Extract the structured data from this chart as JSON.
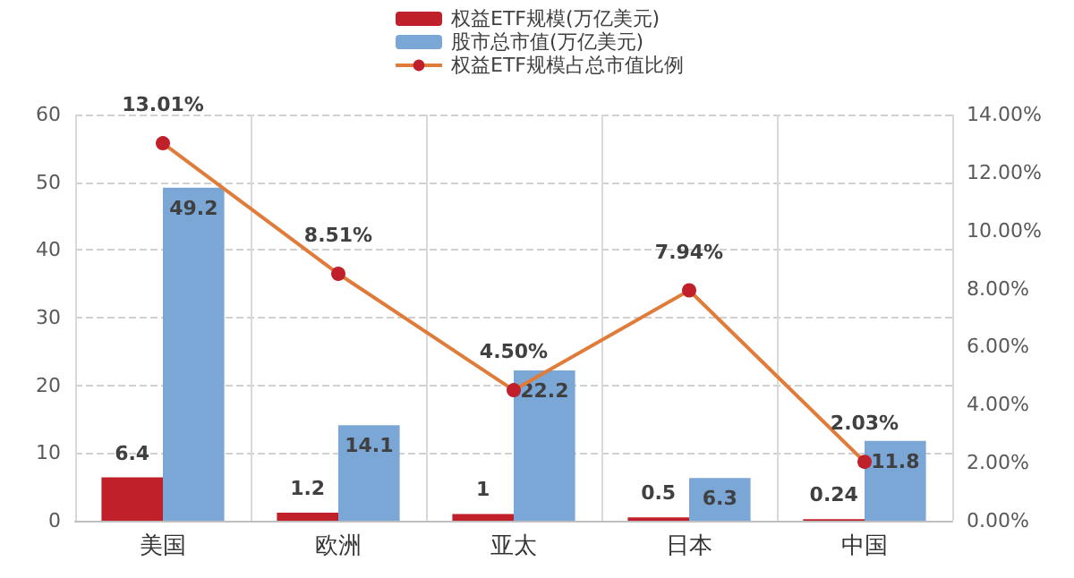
{
  "chart_data": {
    "type": "bar",
    "categories": [
      "美国",
      "欧洲",
      "亚太",
      "日本",
      "中国"
    ],
    "series": [
      {
        "name": "权益ETF规模(万亿美元)",
        "color": "#c0202a",
        "values": [
          6.4,
          1.2,
          1,
          0.5,
          0.24
        ],
        "value_labels": [
          "6.4",
          "1.2",
          "1",
          "0.5",
          "0.24"
        ]
      },
      {
        "name": "股市总市值(万亿美元)",
        "color": "#7ba7d7",
        "values": [
          49.2,
          14.1,
          22.2,
          6.3,
          11.8
        ],
        "value_labels": [
          "49.2",
          "14.1",
          "22.2",
          "6.3",
          "11.8"
        ]
      },
      {
        "name": "权益ETF规模占总市值比例",
        "type": "line",
        "axis": "y2",
        "color": "#e07b39",
        "values": [
          13.01,
          8.51,
          4.5,
          7.94,
          2.03
        ],
        "value_labels": [
          "13.01%",
          "8.51%",
          "4.50%",
          "7.94%",
          "2.03%"
        ]
      }
    ],
    "ylim": [
      0,
      60
    ],
    "yticks": [
      0,
      10,
      20,
      30,
      40,
      50,
      60
    ],
    "y2lim": [
      0,
      14
    ],
    "y2ticks": [
      {
        "value": 0,
        "label": "0.00%"
      },
      {
        "value": 2,
        "label": "2.00%"
      },
      {
        "value": 4,
        "label": "4.00%"
      },
      {
        "value": 6,
        "label": "6.00%"
      },
      {
        "value": 8,
        "label": "8.00%"
      },
      {
        "value": 10,
        "label": "10.00%"
      },
      {
        "value": 12,
        "label": "12.00%"
      },
      {
        "value": 14,
        "label": "14.00%"
      }
    ],
    "grid": true,
    "legend": "top",
    "marker": "circle"
  }
}
